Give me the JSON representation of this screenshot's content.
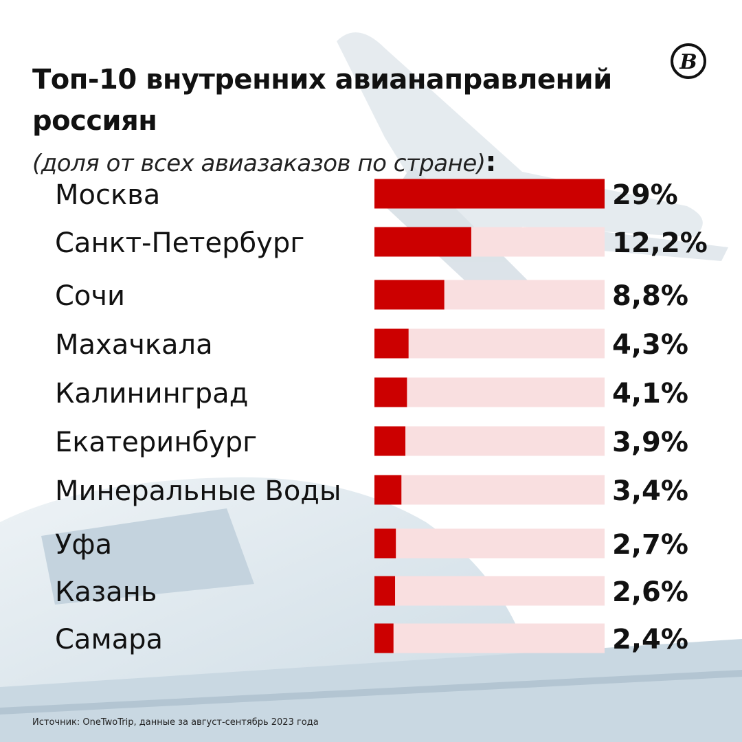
{
  "title": "Топ-10 внутренних авианаправлений россиян",
  "subtitle": "(доля от всех авиазаказов по стране)",
  "title_suffix": ":",
  "logo_text": "В",
  "source": "Источник: OneTwoTrip, данные за август-сентябрь 2023 года",
  "colors": {
    "bar": "#cc0000",
    "track": "#f9dfe0",
    "text": "#111111"
  },
  "chart_data": {
    "type": "bar",
    "orientation": "horizontal",
    "categories": [
      "Москва",
      "Санкт-Петербург",
      "Сочи",
      "Махачкала",
      "Калининград",
      "Екатеринбург",
      "Минеральные Воды",
      "Уфа",
      "Казань",
      "Самара"
    ],
    "values": [
      29,
      12.2,
      8.8,
      4.3,
      4.1,
      3.9,
      3.4,
      2.7,
      2.6,
      2.4
    ],
    "value_labels": [
      "29%",
      "12,2%",
      "8,8%",
      "4,3%",
      "4,1%",
      "3,9%",
      "3,4%",
      "2,7%",
      "2,6%",
      "2,4%"
    ],
    "xlim": [
      0,
      29
    ],
    "grid": false,
    "legend": "none"
  }
}
